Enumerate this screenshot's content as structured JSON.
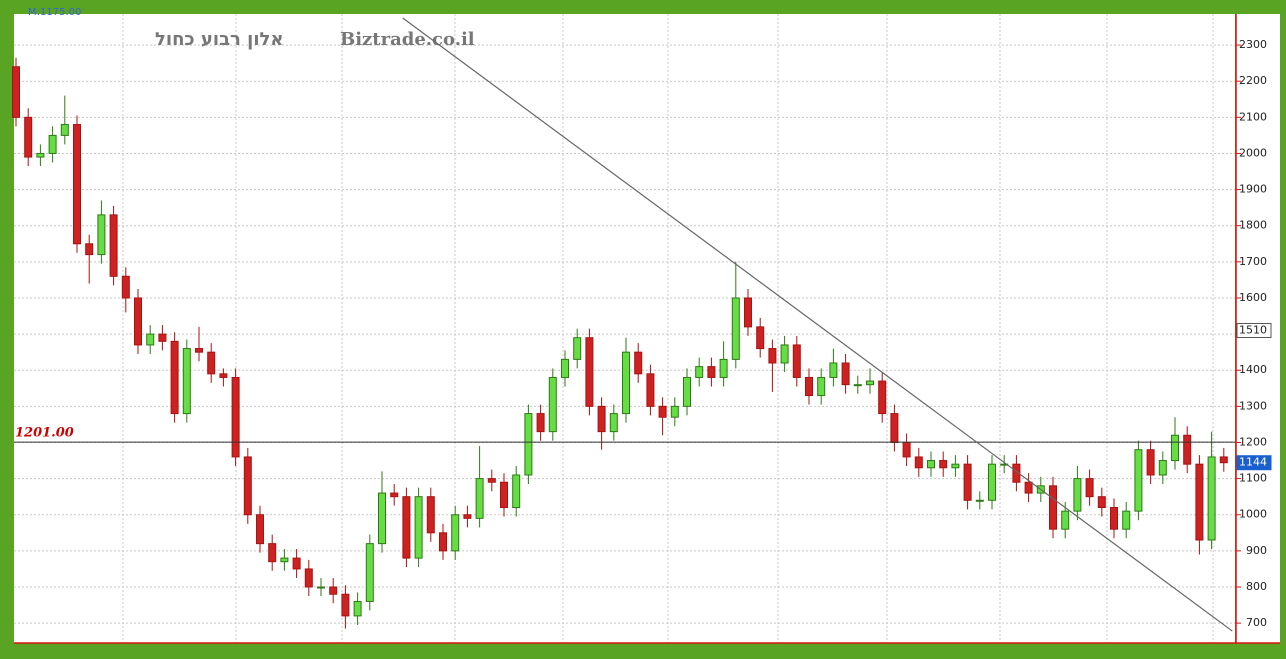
{
  "chart_data": {
    "type": "candlestick",
    "title": "אלון רבוע כחול",
    "subtitle": "Biztrade.co.il",
    "header_note": "M:1175.00",
    "ylim": [
      645,
      2386
    ],
    "yticks": [
      700,
      800,
      900,
      1000,
      1100,
      1200,
      1300,
      1400,
      1500,
      1600,
      1700,
      1800,
      1900,
      2000,
      2100,
      2200,
      2300
    ],
    "grid": true,
    "up_color": "#66dd44",
    "down_color": "#cc2222",
    "open": [
      2240,
      2100,
      1990,
      2000,
      2050,
      2080,
      1750,
      1720,
      1830,
      1660,
      1600,
      1470,
      1500,
      1480,
      1280,
      1460,
      1450,
      1390,
      1380,
      1160,
      1000,
      920,
      870,
      880,
      850,
      800,
      800,
      780,
      720,
      760,
      920,
      1060,
      1050,
      880,
      1050,
      950,
      900,
      1000,
      990,
      1100,
      1090,
      1020,
      1110,
      1280,
      1230,
      1380,
      1430,
      1490,
      1300,
      1230,
      1280,
      1450,
      1390,
      1300,
      1270,
      1300,
      1380,
      1410,
      1380,
      1430,
      1600,
      1520,
      1460,
      1420,
      1470,
      1380,
      1330,
      1380,
      1420,
      1360,
      1360,
      1370,
      1280,
      1200,
      1160,
      1130,
      1150,
      1130,
      1140,
      1040,
      1040,
      1140,
      1140,
      1090,
      1060,
      1080,
      960,
      1010,
      1100,
      1050,
      1020,
      960,
      1010,
      1180,
      1110,
      1150,
      1220,
      1140,
      930,
      1160
    ],
    "high": [
      2265,
      2125,
      2025,
      2075,
      2160,
      2105,
      1775,
      1870,
      1855,
      1685,
      1625,
      1525,
      1525,
      1505,
      1485,
      1520,
      1475,
      1405,
      1405,
      1185,
      1025,
      945,
      905,
      905,
      875,
      825,
      825,
      805,
      785,
      945,
      1120,
      1085,
      1075,
      1075,
      1075,
      975,
      1025,
      1025,
      1190,
      1125,
      1115,
      1135,
      1305,
      1305,
      1405,
      1455,
      1515,
      1515,
      1325,
      1305,
      1490,
      1475,
      1415,
      1325,
      1325,
      1405,
      1435,
      1435,
      1480,
      1700,
      1625,
      1545,
      1485,
      1495,
      1495,
      1405,
      1405,
      1460,
      1445,
      1385,
      1405,
      1395,
      1305,
      1225,
      1185,
      1175,
      1175,
      1165,
      1165,
      1065,
      1165,
      1165,
      1165,
      1115,
      1105,
      1105,
      1035,
      1135,
      1125,
      1075,
      1045,
      1035,
      1205,
      1205,
      1175,
      1270,
      1245,
      1165,
      1230,
      1185
    ],
    "low": [
      2075,
      1965,
      1965,
      1975,
      2025,
      1725,
      1640,
      1695,
      1635,
      1560,
      1445,
      1445,
      1455,
      1255,
      1255,
      1425,
      1365,
      1355,
      1135,
      975,
      895,
      845,
      845,
      825,
      775,
      775,
      755,
      685,
      695,
      735,
      895,
      1025,
      855,
      855,
      925,
      875,
      875,
      965,
      965,
      1065,
      995,
      995,
      1085,
      1205,
      1205,
      1355,
      1405,
      1275,
      1180,
      1205,
      1255,
      1365,
      1275,
      1220,
      1245,
      1275,
      1355,
      1355,
      1355,
      1405,
      1495,
      1435,
      1340,
      1395,
      1355,
      1305,
      1305,
      1355,
      1335,
      1335,
      1335,
      1255,
      1175,
      1135,
      1105,
      1105,
      1105,
      1105,
      1015,
      1015,
      1015,
      1115,
      1065,
      1035,
      1035,
      935,
      935,
      985,
      1025,
      995,
      935,
      935,
      985,
      1085,
      1085,
      1125,
      1115,
      890,
      905,
      1119
    ],
    "close": [
      2100,
      1990,
      2000,
      2050,
      2080,
      1750,
      1720,
      1830,
      1660,
      1600,
      1470,
      1500,
      1480,
      1280,
      1460,
      1450,
      1390,
      1380,
      1160,
      1000,
      920,
      870,
      880,
      850,
      800,
      800,
      780,
      720,
      760,
      920,
      1060,
      1050,
      880,
      1050,
      950,
      900,
      1000,
      990,
      1100,
      1090,
      1020,
      1110,
      1280,
      1230,
      1380,
      1430,
      1490,
      1300,
      1230,
      1280,
      1450,
      1390,
      1300,
      1270,
      1300,
      1380,
      1410,
      1380,
      1430,
      1600,
      1520,
      1460,
      1420,
      1470,
      1380,
      1330,
      1380,
      1420,
      1360,
      1360,
      1370,
      1280,
      1200,
      1160,
      1130,
      1150,
      1130,
      1140,
      1040,
      1040,
      1140,
      1140,
      1090,
      1060,
      1080,
      960,
      1010,
      1100,
      1050,
      1020,
      960,
      1010,
      1180,
      1110,
      1150,
      1220,
      1140,
      930,
      1160,
      1144
    ],
    "level_line": {
      "value": 1201,
      "label": "1201.00",
      "color": "#cc0000"
    },
    "trendline": {
      "x": [
        31.7,
        99.7
      ],
      "values": [
        2375,
        678
      ]
    },
    "markers": [
      {
        "value": 1510,
        "color": "#ffffff"
      },
      {
        "value": 1144,
        "color": "#1a5fd0"
      }
    ]
  }
}
